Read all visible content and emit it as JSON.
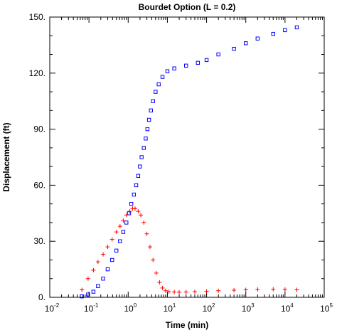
{
  "chart_data": {
    "type": "scatter",
    "title": "Bourdet Option (L = 0.2)",
    "xlabel": "Time (min)",
    "ylabel": "Displacement (ft)",
    "x_scale": "log",
    "xlim": [
      0.01,
      100000
    ],
    "ylim": [
      0,
      150
    ],
    "x_ticks": [
      {
        "value": 0.01,
        "base": "10",
        "exp": "-2"
      },
      {
        "value": 0.1,
        "base": "10",
        "exp": "-1"
      },
      {
        "value": 1,
        "base": "10",
        "exp": "0"
      },
      {
        "value": 10,
        "base": "10",
        "exp": "1"
      },
      {
        "value": 100,
        "base": "10",
        "exp": "2"
      },
      {
        "value": 1000,
        "base": "10",
        "exp": "3"
      },
      {
        "value": 10000,
        "base": "10",
        "exp": "4"
      },
      {
        "value": 100000,
        "base": "10",
        "exp": "5"
      }
    ],
    "y_ticks": [
      {
        "value": 0,
        "label": "0."
      },
      {
        "value": 30,
        "label": "30."
      },
      {
        "value": 60,
        "label": "60."
      },
      {
        "value": 90,
        "label": "90."
      },
      {
        "value": 120,
        "label": "120."
      },
      {
        "value": 150,
        "label": "150."
      }
    ],
    "grid": false,
    "series": [
      {
        "marker": "square",
        "color": "#0000ff",
        "points": [
          [
            0.066,
            0.5
          ],
          [
            0.095,
            1.5
          ],
          [
            0.13,
            3
          ],
          [
            0.17,
            6
          ],
          [
            0.23,
            10
          ],
          [
            0.3,
            15
          ],
          [
            0.39,
            20
          ],
          [
            0.5,
            25
          ],
          [
            0.62,
            30
          ],
          [
            0.75,
            35
          ],
          [
            0.9,
            40
          ],
          [
            1.05,
            45
          ],
          [
            1.2,
            50
          ],
          [
            1.4,
            55
          ],
          [
            1.6,
            60
          ],
          [
            1.8,
            65
          ],
          [
            2.0,
            70
          ],
          [
            2.2,
            75
          ],
          [
            2.5,
            80
          ],
          [
            2.8,
            85
          ],
          [
            3.1,
            90
          ],
          [
            3.4,
            95
          ],
          [
            3.8,
            100
          ],
          [
            4.3,
            105
          ],
          [
            5.0,
            110
          ],
          [
            6.0,
            114
          ],
          [
            7.5,
            118
          ],
          [
            10,
            121
          ],
          [
            15,
            122.5
          ],
          [
            30,
            124
          ],
          [
            60,
            125.5
          ],
          [
            100,
            127
          ],
          [
            200,
            130
          ],
          [
            500,
            133
          ],
          [
            1000,
            136
          ],
          [
            2000,
            138.5
          ],
          [
            5000,
            141
          ],
          [
            10000,
            143
          ],
          [
            20000,
            144.5
          ]
        ]
      },
      {
        "marker": "plus",
        "color": "#ff0000",
        "points": [
          [
            0.066,
            4
          ],
          [
            0.095,
            10
          ],
          [
            0.13,
            14.5
          ],
          [
            0.17,
            19
          ],
          [
            0.23,
            23
          ],
          [
            0.3,
            27
          ],
          [
            0.39,
            31
          ],
          [
            0.5,
            35
          ],
          [
            0.62,
            38
          ],
          [
            0.75,
            41
          ],
          [
            0.9,
            44
          ],
          [
            1.1,
            46
          ],
          [
            1.3,
            47.5
          ],
          [
            1.5,
            47.5
          ],
          [
            1.8,
            46
          ],
          [
            2.1,
            44
          ],
          [
            2.5,
            40
          ],
          [
            3.0,
            34
          ],
          [
            3.6,
            27
          ],
          [
            4.3,
            20
          ],
          [
            5.2,
            13
          ],
          [
            6.3,
            8
          ],
          [
            7.5,
            5
          ],
          [
            9,
            3.5
          ],
          [
            11,
            3
          ],
          [
            15,
            2.8
          ],
          [
            20,
            2.7
          ],
          [
            30,
            2.8
          ],
          [
            50,
            3
          ],
          [
            100,
            3.2
          ],
          [
            200,
            3.5
          ],
          [
            500,
            3.8
          ],
          [
            1000,
            4
          ],
          [
            2000,
            4.2
          ],
          [
            5000,
            4.3
          ],
          [
            10000,
            4.2
          ],
          [
            20000,
            4
          ]
        ]
      }
    ]
  }
}
